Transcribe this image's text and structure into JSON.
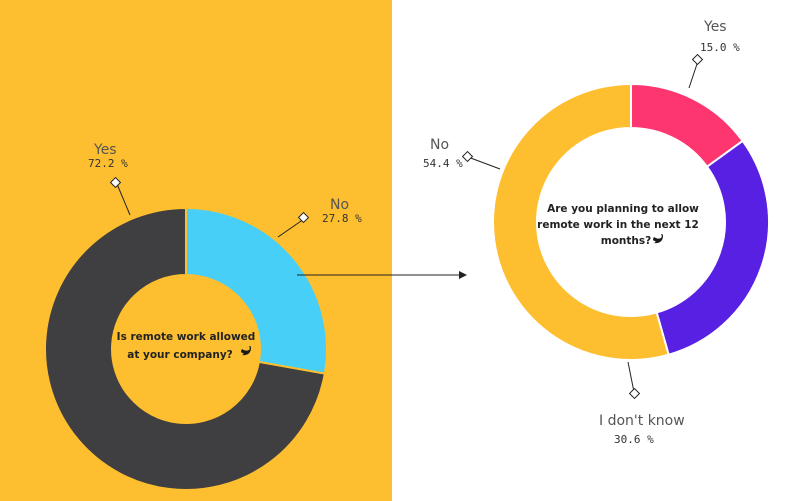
{
  "colors": {
    "left_background": "#FDBF2F",
    "right_background": "#FFFFFF"
  },
  "chart_data": [
    {
      "type": "pie",
      "title": "",
      "center_text": [
        "Is remote work allowed",
        "at your company?"
      ],
      "center_icon": "twitter-icon",
      "slices": [
        {
          "name": "No",
          "value": 27.8,
          "label": "27.8 %",
          "color": "#48CFF7"
        },
        {
          "name": "Yes",
          "value": 72.2,
          "label": "72.2 %",
          "color": "#3F3E40"
        }
      ]
    },
    {
      "type": "pie",
      "title": "",
      "center_text": [
        "Are you planning to allow",
        "remote work in the next 12",
        "months?"
      ],
      "center_icon": "twitter-icon",
      "slices": [
        {
          "name": "Yes",
          "value": 15.0,
          "label": "15.0 %",
          "color": "#FD3670"
        },
        {
          "name": "I don't know",
          "value": 30.6,
          "label": "30.6 %",
          "color": "#5720E3"
        },
        {
          "name": "No",
          "value": 54.4,
          "label": "54.4 %",
          "color": "#FDBF2F"
        }
      ]
    }
  ]
}
